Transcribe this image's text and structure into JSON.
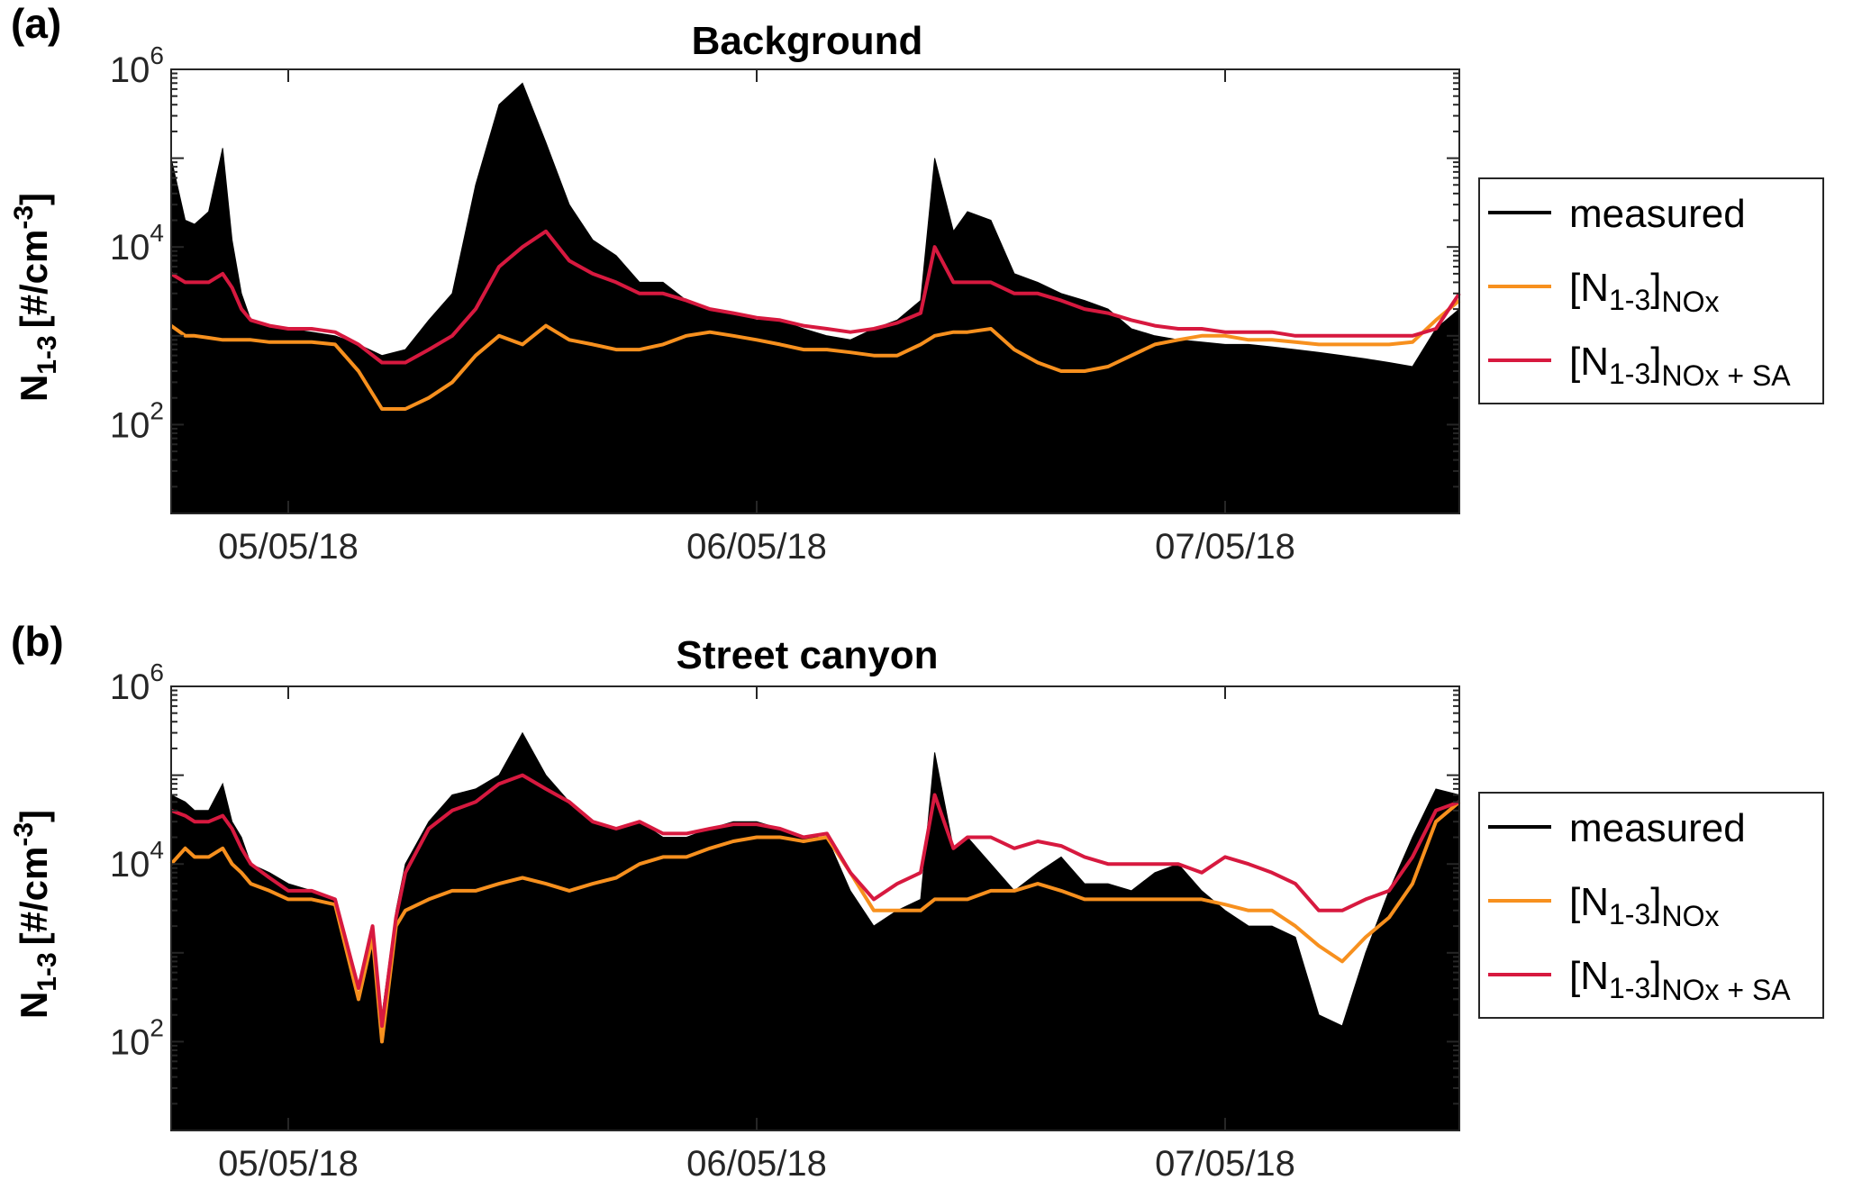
{
  "panels": [
    {
      "tag": "(a)",
      "title": "Background",
      "ylabel_main": "N",
      "ylabel_sub": "1-3",
      "ylabel_unit": "[#/cm",
      "ylabel_unit_sup": "-3",
      "ylabel_unit_close": "]"
    },
    {
      "tag": "(b)",
      "title": "Street canyon",
      "ylabel_main": "N",
      "ylabel_sub": "1-3",
      "ylabel_unit": "[#/cm",
      "ylabel_unit_sup": "-3",
      "ylabel_unit_close": "]"
    }
  ],
  "legend": [
    {
      "label": "measured",
      "color": "#000000"
    },
    {
      "label_main": "[N",
      "label_sub1": "1-3",
      "label_close": "]",
      "label_sub2": "NOx",
      "color": "#F7901E"
    },
    {
      "label_main": "[N",
      "label_sub1": "1-3",
      "label_close": "]",
      "label_sub2": "NOx + SA",
      "color": "#D7193F"
    }
  ],
  "yticks": [
    {
      "base": "10",
      "exp": "2",
      "value": 100
    },
    {
      "base": "10",
      "exp": "4",
      "value": 10000
    },
    {
      "base": "10",
      "exp": "6",
      "value": 1000000
    }
  ],
  "chart_data": [
    {
      "type": "area",
      "title": "Background",
      "yscale": "log",
      "ylim": [
        10,
        1000000
      ],
      "xlim": [
        4.25,
        7.0
      ],
      "xticks": [
        {
          "label": "05/05/18",
          "value": 4.5
        },
        {
          "label": "06/05/18",
          "value": 5.5
        },
        {
          "label": "07/05/18",
          "value": 6.5
        }
      ],
      "x": [
        4.25,
        4.28,
        4.3,
        4.33,
        4.36,
        4.38,
        4.4,
        4.42,
        4.46,
        4.5,
        4.55,
        4.6,
        4.65,
        4.7,
        4.75,
        4.8,
        4.85,
        4.9,
        4.95,
        5.0,
        5.05,
        5.1,
        5.15,
        5.2,
        5.25,
        5.3,
        5.35,
        5.4,
        5.45,
        5.5,
        5.55,
        5.6,
        5.65,
        5.7,
        5.75,
        5.8,
        5.85,
        5.88,
        5.92,
        5.95,
        6.0,
        6.05,
        6.1,
        6.15,
        6.2,
        6.25,
        6.3,
        6.35,
        6.4,
        6.45,
        6.5,
        6.55,
        6.6,
        6.65,
        6.7,
        6.75,
        6.8,
        6.85,
        6.9,
        6.95,
        7.0
      ],
      "series": [
        {
          "name": "measured",
          "values": [
            100000,
            20000,
            18000,
            25000,
            130000,
            12000,
            3000,
            1500,
            1300,
            1200,
            1100,
            1000,
            800,
            600,
            700,
            1500,
            3000,
            50000,
            400000,
            700000,
            150000,
            30000,
            12000,
            8000,
            4000,
            4000,
            2500,
            2000,
            1800,
            1500,
            1500,
            1200,
            1000,
            900,
            1200,
            1500,
            2500,
            100000,
            15000,
            25000,
            20000,
            5000,
            4000,
            3000,
            2500,
            2000,
            1200,
            1000,
            900,
            850,
            800,
            800,
            750,
            700,
            650,
            600,
            550,
            500,
            450,
            1200,
            2000
          ]
        },
        {
          "name": "[N1-3]NOx",
          "values": [
            1300,
            1000,
            1000,
            950,
            900,
            900,
            900,
            900,
            850,
            850,
            850,
            800,
            400,
            150,
            150,
            200,
            300,
            600,
            1000,
            800,
            1300,
            900,
            800,
            700,
            700,
            800,
            1000,
            1100,
            1000,
            900,
            800,
            700,
            700,
            650,
            600,
            600,
            800,
            1000,
            1100,
            1100,
            1200,
            700,
            500,
            400,
            400,
            450,
            600,
            800,
            900,
            1000,
            1000,
            900,
            900,
            850,
            800,
            800,
            800,
            800,
            850,
            1500,
            2500
          ]
        },
        {
          "name": "[N1-3]NOx + SA",
          "values": [
            5000,
            4000,
            4000,
            4000,
            5000,
            3500,
            2000,
            1500,
            1300,
            1200,
            1200,
            1100,
            800,
            500,
            500,
            700,
            1000,
            2000,
            6000,
            10000,
            15000,
            7000,
            5000,
            4000,
            3000,
            3000,
            2500,
            2000,
            1800,
            1600,
            1500,
            1300,
            1200,
            1100,
            1200,
            1400,
            1800,
            10000,
            4000,
            4000,
            4000,
            3000,
            3000,
            2500,
            2000,
            1800,
            1500,
            1300,
            1200,
            1200,
            1100,
            1100,
            1100,
            1000,
            1000,
            1000,
            1000,
            1000,
            1000,
            1200,
            3000
          ]
        }
      ]
    },
    {
      "type": "area",
      "title": "Street canyon",
      "yscale": "log",
      "ylim": [
        10,
        1000000
      ],
      "xlim": [
        4.25,
        7.0
      ],
      "xticks": [
        {
          "label": "05/05/18",
          "value": 4.5
        },
        {
          "label": "06/05/18",
          "value": 5.5
        },
        {
          "label": "07/05/18",
          "value": 6.5
        }
      ],
      "x": [
        4.25,
        4.28,
        4.3,
        4.33,
        4.36,
        4.38,
        4.4,
        4.42,
        4.46,
        4.5,
        4.55,
        4.6,
        4.65,
        4.68,
        4.7,
        4.73,
        4.75,
        4.8,
        4.85,
        4.9,
        4.95,
        5.0,
        5.05,
        5.1,
        5.15,
        5.2,
        5.25,
        5.3,
        5.35,
        5.4,
        5.45,
        5.5,
        5.55,
        5.6,
        5.65,
        5.7,
        5.75,
        5.8,
        5.85,
        5.88,
        5.92,
        5.95,
        6.0,
        6.05,
        6.1,
        6.15,
        6.2,
        6.25,
        6.3,
        6.35,
        6.4,
        6.45,
        6.5,
        6.55,
        6.6,
        6.65,
        6.7,
        6.75,
        6.8,
        6.85,
        6.9,
        6.95,
        7.0
      ],
      "series": [
        {
          "name": "measured",
          "values": [
            60000,
            50000,
            40000,
            40000,
            80000,
            30000,
            20000,
            10000,
            8000,
            6000,
            5000,
            4000,
            300,
            2000,
            200,
            3000,
            10000,
            30000,
            60000,
            70000,
            100000,
            300000,
            100000,
            50000,
            30000,
            25000,
            30000,
            20000,
            20000,
            25000,
            30000,
            30000,
            25000,
            20000,
            20000,
            5000,
            2000,
            3000,
            4000,
            180000,
            15000,
            20000,
            10000,
            5000,
            8000,
            12000,
            6000,
            6000,
            5000,
            8000,
            10000,
            5000,
            3000,
            2000,
            2000,
            1500,
            200,
            150,
            1000,
            5000,
            20000,
            70000,
            60000
          ]
        },
        {
          "name": "[N1-3]NOx",
          "values": [
            10000,
            15000,
            12000,
            12000,
            15000,
            10000,
            8000,
            6000,
            5000,
            4000,
            4000,
            3500,
            300,
            1500,
            100,
            2000,
            3000,
            4000,
            5000,
            5000,
            6000,
            7000,
            6000,
            5000,
            6000,
            7000,
            10000,
            12000,
            12000,
            15000,
            18000,
            20000,
            20000,
            18000,
            20000,
            8000,
            3000,
            3000,
            3000,
            4000,
            4000,
            4000,
            5000,
            5000,
            6000,
            5000,
            4000,
            4000,
            4000,
            4000,
            4000,
            4000,
            3500,
            3000,
            3000,
            2000,
            1200,
            800,
            1500,
            2500,
            6000,
            30000,
            50000
          ]
        },
        {
          "name": "[N1-3]NOx + SA",
          "values": [
            40000,
            35000,
            30000,
            30000,
            35000,
            25000,
            15000,
            10000,
            7000,
            5000,
            5000,
            4000,
            400,
            2000,
            150,
            2500,
            8000,
            25000,
            40000,
            50000,
            80000,
            100000,
            70000,
            50000,
            30000,
            25000,
            30000,
            22000,
            22000,
            25000,
            28000,
            28000,
            25000,
            20000,
            22000,
            8000,
            4000,
            6000,
            8000,
            60000,
            15000,
            20000,
            20000,
            15000,
            18000,
            16000,
            12000,
            10000,
            10000,
            10000,
            10000,
            8000,
            12000,
            10000,
            8000,
            6000,
            3000,
            3000,
            4000,
            5000,
            12000,
            40000,
            50000
          ]
        }
      ]
    }
  ]
}
